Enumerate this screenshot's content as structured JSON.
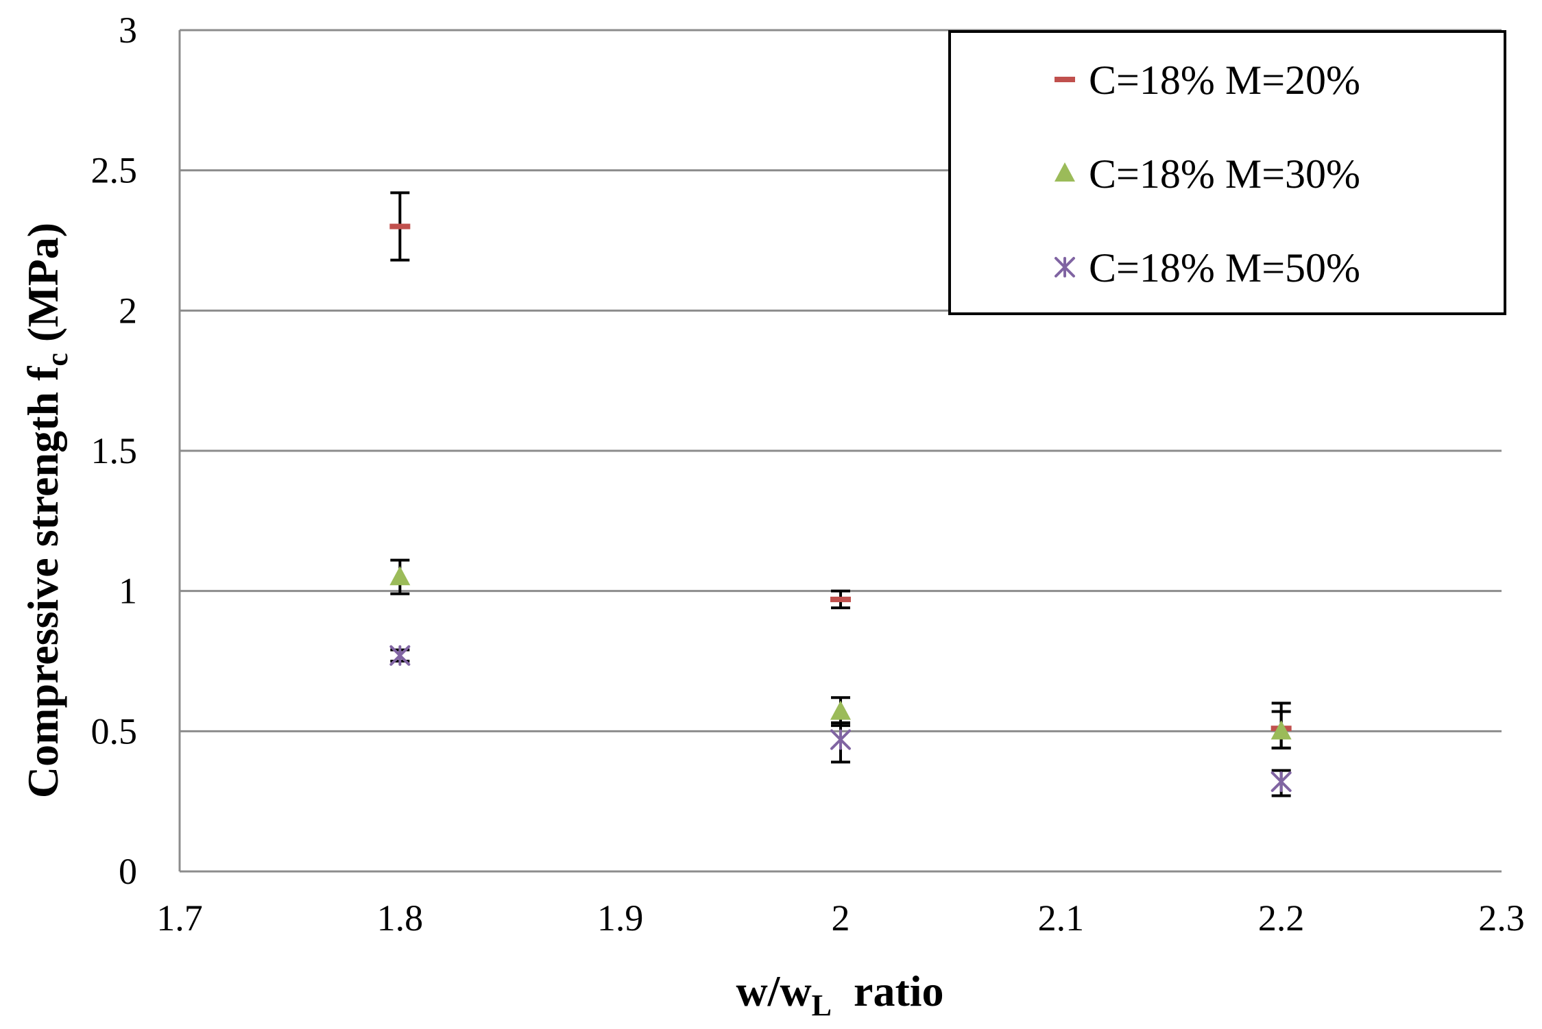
{
  "chart_data": {
    "type": "scatter",
    "xlabel": {
      "main": "w/w",
      "sub": "L",
      "tail": "  ratio"
    },
    "ylabel": {
      "main": "Compressive strength f",
      "sub": "c",
      "tail": " (MPa)"
    },
    "xlim": [
      1.7,
      2.3
    ],
    "ylim": [
      0,
      3
    ],
    "x_ticks": [
      1.7,
      1.8,
      1.9,
      2.0,
      2.1,
      2.2,
      2.3
    ],
    "x_tick_labels": [
      "1.7",
      "1.8",
      "1.9",
      "2",
      "2.1",
      "2.2",
      "2.3"
    ],
    "y_ticks": [
      0,
      0.5,
      1,
      1.5,
      2,
      2.5,
      3
    ],
    "y_tick_labels": [
      "0",
      "0.5",
      "1",
      "1.5",
      "2",
      "2.5",
      "3"
    ],
    "grid": "horizontal",
    "legend_position": "top-right",
    "series": [
      {
        "name": "C=18% M=20%",
        "marker": "dash",
        "color": "#c0504d",
        "points": [
          {
            "x": 1.8,
            "y": 2.3,
            "err_low": 2.18,
            "err_high": 2.42
          },
          {
            "x": 2.0,
            "y": 0.97,
            "err_low": 0.94,
            "err_high": 1.0
          },
          {
            "x": 2.2,
            "y": 0.51,
            "err_low": 0.44,
            "err_high": 0.6
          }
        ]
      },
      {
        "name": "C=18% M=30%",
        "marker": "triangle",
        "color": "#9bbb59",
        "points": [
          {
            "x": 1.8,
            "y": 1.05,
            "err_low": 0.99,
            "err_high": 1.11
          },
          {
            "x": 2.0,
            "y": 0.57,
            "err_low": 0.52,
            "err_high": 0.62
          },
          {
            "x": 2.2,
            "y": 0.5,
            "err_low": 0.44,
            "err_high": 0.57
          }
        ]
      },
      {
        "name": "C=18% M=50%",
        "marker": "star",
        "color": "#8064a2",
        "points": [
          {
            "x": 1.8,
            "y": 0.77,
            "err_low": 0.75,
            "err_high": 0.79
          },
          {
            "x": 2.0,
            "y": 0.47,
            "err_low": 0.39,
            "err_high": 0.53
          },
          {
            "x": 2.2,
            "y": 0.32,
            "err_low": 0.27,
            "err_high": 0.36
          }
        ]
      }
    ]
  }
}
